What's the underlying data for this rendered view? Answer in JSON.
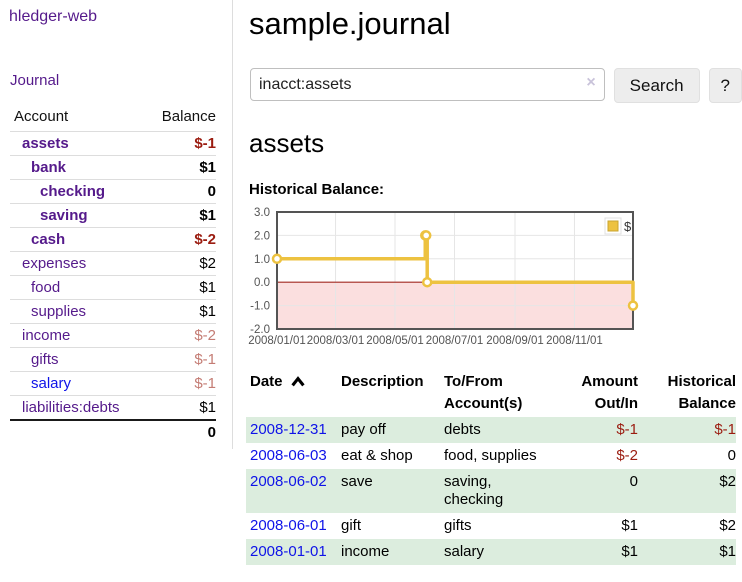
{
  "colors": {
    "link_purple": "#551a8b",
    "link_blue": "#0f13e8",
    "negative_strong": "#9b1c10",
    "negative_soft": "#c47c74",
    "row_green": "#dcedde",
    "chart_gold": "#edc240",
    "chart_gold_border": "#c9a42f",
    "chart_negative_fill": "#fbdfdf",
    "chart_zero_line": "#a22a22",
    "chart_border": "#545454",
    "chart_grid": "#e6e6e6",
    "chart_tick_text": "#545454"
  },
  "sidebar": {
    "app_title": "hledger-web",
    "journal_link": "Journal",
    "accounts": {
      "headers": {
        "account": "Account",
        "balance": "Balance"
      },
      "rows": [
        {
          "name": "assets",
          "balance": "$-1",
          "indent": 0,
          "bold": true,
          "balance_tone": "negative-strong"
        },
        {
          "name": "bank",
          "balance": "$1",
          "indent": 1,
          "bold": true,
          "balance_tone": "normal"
        },
        {
          "name": "checking",
          "balance": "0",
          "indent": 2,
          "bold": true,
          "balance_tone": "normal"
        },
        {
          "name": "saving",
          "balance": "$1",
          "indent": 2,
          "bold": true,
          "balance_tone": "normal"
        },
        {
          "name": "cash",
          "balance": "$-2",
          "indent": 1,
          "bold": true,
          "balance_tone": "negative-strong"
        },
        {
          "name": "expenses",
          "balance": "$2",
          "indent": 0,
          "bold": false,
          "balance_tone": "normal"
        },
        {
          "name": "food",
          "balance": "$1",
          "indent": 1,
          "bold": false,
          "balance_tone": "normal"
        },
        {
          "name": "supplies",
          "balance": "$1",
          "indent": 1,
          "bold": false,
          "balance_tone": "normal"
        },
        {
          "name": "income",
          "balance": "$-2",
          "indent": 0,
          "bold": false,
          "balance_tone": "negative-soft"
        },
        {
          "name": "gifts",
          "balance": "$-1",
          "indent": 1,
          "bold": false,
          "balance_tone": "negative-soft"
        },
        {
          "name": "salary",
          "balance": "$-1",
          "indent": 1,
          "bold": false,
          "balance_tone": "negative-soft",
          "link_tone": "blue"
        },
        {
          "name": "liabilities:debts",
          "balance": "$1",
          "indent": 0,
          "bold": false,
          "balance_tone": "normal"
        }
      ],
      "total": "0"
    }
  },
  "main": {
    "title": "sample.journal",
    "search": {
      "value": "inacct:assets",
      "clear_icon": "×",
      "search_button": "Search",
      "help_button": "?"
    },
    "account_heading": "assets",
    "chart_label": "Historical Balance:"
  },
  "chart_data": {
    "type": "line",
    "line_style": "step",
    "title": "Historical Balance",
    "xlim": [
      "2008-01-01",
      "2008-12-31"
    ],
    "ylim": [
      -2.0,
      3.0
    ],
    "grid": true,
    "x_ticks": [
      {
        "date": "2008-01-01",
        "label": "2008/01/01"
      },
      {
        "date": "2008-03-01",
        "label": "2008/03/01"
      },
      {
        "date": "2008-05-01",
        "label": "2008/05/01"
      },
      {
        "date": "2008-07-01",
        "label": "2008/07/01"
      },
      {
        "date": "2008-09-01",
        "label": "2008/09/01"
      },
      {
        "date": "2008-11-01",
        "label": "2008/11/01"
      }
    ],
    "y_ticks": [
      {
        "value": 3.0,
        "label": "3.0"
      },
      {
        "value": 2.0,
        "label": "2.0"
      },
      {
        "value": 1.0,
        "label": "1.0"
      },
      {
        "value": 0.0,
        "label": "0.0"
      },
      {
        "value": -1.0,
        "label": "-1.0"
      },
      {
        "value": -2.0,
        "label": "-2.0"
      }
    ],
    "series": [
      {
        "name": "$",
        "points": [
          {
            "date": "2008-01-01",
            "value": 1
          },
          {
            "date": "2008-06-01",
            "value": 2
          },
          {
            "date": "2008-06-02",
            "value": 2
          },
          {
            "date": "2008-06-03",
            "value": 0
          },
          {
            "date": "2008-12-31",
            "value": -1
          }
        ]
      }
    ],
    "legend": {
      "label": "$",
      "position": "top-right"
    }
  },
  "register": {
    "headers": {
      "date": "Date",
      "description": "Description",
      "accounts": "To/From Account(s)",
      "amount": "Amount Out/In",
      "balance": "Historical Balance"
    },
    "rows": [
      {
        "date": "2008-12-31",
        "description": "pay off",
        "accounts": "debts",
        "amount": "$-1",
        "amount_tone": "negative",
        "balance": "$-1",
        "balance_tone": "negative"
      },
      {
        "date": "2008-06-03",
        "description": "eat & shop",
        "accounts": "food, supplies",
        "amount": "$-2",
        "amount_tone": "negative",
        "balance": "0",
        "balance_tone": "normal"
      },
      {
        "date": "2008-06-02",
        "description": "save",
        "accounts": "saving, checking",
        "amount": "0",
        "amount_tone": "normal",
        "balance": "$2",
        "balance_tone": "normal"
      },
      {
        "date": "2008-06-01",
        "description": "gift",
        "accounts": "gifts",
        "amount": "$1",
        "amount_tone": "normal",
        "balance": "$2",
        "balance_tone": "normal"
      },
      {
        "date": "2008-01-01",
        "description": "income",
        "accounts": "salary",
        "amount": "$1",
        "amount_tone": "normal",
        "balance": "$1",
        "balance_tone": "normal"
      }
    ]
  }
}
